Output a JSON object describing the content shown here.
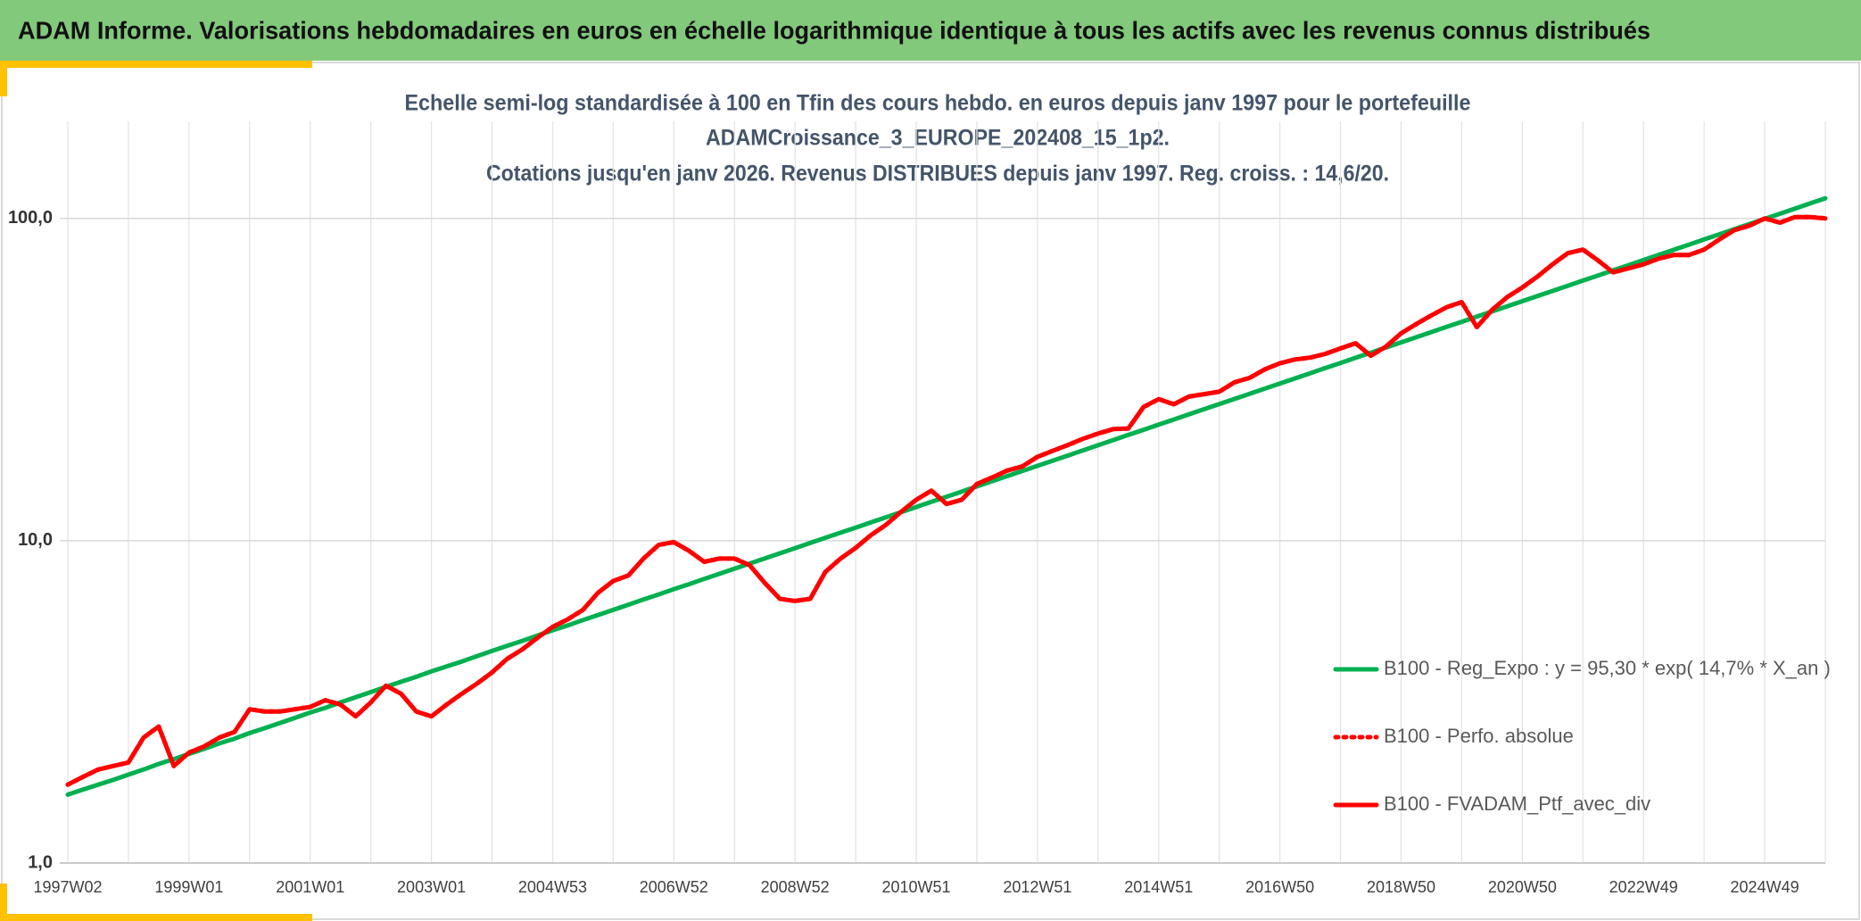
{
  "header": {
    "title": "ADAM Informe. Valorisations hebdomadaires en euros en échelle logarithmique identique à tous les actifs avec les revenus connus distribués"
  },
  "chart_data": {
    "type": "line",
    "title": [
      "Echelle semi-log standardisée à 100 en Tfin des cours hebdo. en euros depuis janv 1997 pour le portefeuille",
      "ADAMCroissance_3_EUROPE_202408_15_1p2.",
      "Cotations jusqu'en janv 2026. Revenus DISTRIBUES depuis janv 1997. Reg. croiss. : 14,6/20."
    ],
    "x": [
      "1997W02",
      null,
      null,
      null,
      null,
      null,
      null,
      null,
      "1999W01",
      null,
      null,
      null,
      null,
      null,
      null,
      null,
      "2001W01",
      null,
      null,
      null,
      null,
      null,
      null,
      null,
      "2003W01",
      null,
      null,
      null,
      null,
      null,
      null,
      null,
      "2004W53",
      null,
      null,
      null,
      null,
      null,
      null,
      null,
      "2006W52",
      null,
      null,
      null,
      null,
      null,
      null,
      null,
      "2008W52",
      null,
      null,
      null,
      null,
      null,
      null,
      null,
      "2010W51",
      null,
      null,
      null,
      null,
      null,
      null,
      null,
      "2012W51",
      null,
      null,
      null,
      null,
      null,
      null,
      null,
      "2014W51",
      null,
      null,
      null,
      null,
      null,
      null,
      null,
      "2016W50",
      null,
      null,
      null,
      null,
      null,
      null,
      null,
      "2018W50",
      null,
      null,
      null,
      null,
      null,
      null,
      null,
      "2020W50",
      null,
      null,
      null,
      null,
      null,
      null,
      null,
      "2022W49",
      null,
      null,
      null,
      null,
      null,
      null,
      null,
      "2024W49",
      null,
      null,
      null,
      null
    ],
    "series": [
      {
        "name": "B100 - Reg_Expo : y = 95,30 * exp( 14,7% *  X_an )",
        "color": "#00b050",
        "style": "solid",
        "values": [
          1.63,
          1.69,
          1.75,
          1.81,
          1.88,
          1.95,
          2.03,
          2.1,
          2.18,
          2.26,
          2.35,
          2.43,
          2.53,
          2.62,
          2.72,
          2.82,
          2.93,
          3.03,
          3.15,
          3.27,
          3.39,
          3.52,
          3.65,
          3.78,
          3.93,
          4.07,
          4.22,
          4.38,
          4.55,
          4.72,
          4.89,
          5.08,
          5.27,
          5.46,
          5.67,
          5.88,
          6.1,
          6.33,
          6.57,
          6.81,
          7.07,
          7.33,
          7.61,
          7.89,
          8.19,
          8.49,
          8.81,
          9.14,
          9.48,
          9.84,
          10.21,
          10.59,
          10.98,
          11.39,
          11.82,
          12.26,
          12.72,
          13.2,
          13.69,
          14.2,
          14.74,
          15.29,
          15.86,
          16.46,
          17.07,
          17.71,
          18.37,
          19.06,
          19.78,
          20.52,
          21.29,
          22.08,
          22.91,
          23.77,
          24.66,
          25.58,
          26.54,
          27.53,
          28.56,
          29.63,
          30.74,
          31.89,
          33.08,
          34.32,
          35.61,
          36.94,
          38.32,
          39.76,
          41.25,
          42.79,
          44.39,
          46.06,
          47.78,
          49.57,
          51.42,
          53.35,
          55.35,
          57.42,
          59.57,
          61.8,
          64.11,
          66.51,
          69.0,
          71.58,
          74.27,
          77.05,
          79.93,
          82.92,
          86.03,
          89.25,
          92.59,
          96.05,
          99.65,
          103.4,
          107.2,
          111.3,
          115.4
        ]
      },
      {
        "name": "B100 - Perfo. absolue",
        "color": "#ff0000",
        "style": "dotted",
        "values": [
          1.75,
          1.85,
          1.95,
          2.0,
          2.05,
          2.45,
          2.65,
          2.0,
          2.2,
          2.3,
          2.45,
          2.55,
          3.0,
          2.95,
          2.95,
          3.0,
          3.05,
          3.2,
          3.1,
          2.85,
          3.15,
          3.55,
          3.35,
          2.95,
          2.85,
          3.1,
          3.35,
          3.6,
          3.9,
          4.3,
          4.6,
          5.0,
          5.4,
          5.7,
          6.1,
          6.9,
          7.5,
          7.8,
          8.8,
          9.7,
          9.9,
          9.3,
          8.6,
          8.8,
          8.8,
          8.4,
          7.4,
          6.6,
          6.5,
          6.6,
          8.0,
          8.8,
          9.5,
          10.4,
          11.2,
          12.3,
          13.4,
          14.3,
          13.0,
          13.4,
          15.0,
          15.7,
          16.5,
          17.0,
          18.2,
          19.0,
          19.8,
          20.7,
          21.5,
          22.2,
          22.3,
          26.0,
          27.5,
          26.5,
          28.0,
          28.5,
          29.0,
          31.0,
          32.0,
          34.0,
          35.5,
          36.5,
          37.0,
          38.0,
          39.5,
          41.0,
          37.5,
          40.0,
          44.0,
          47.0,
          50.0,
          53.0,
          55.0,
          46.0,
          52.0,
          57.0,
          61.0,
          66.0,
          72.0,
          78.0,
          80.0,
          74.0,
          68.0,
          70.0,
          72.0,
          75.0,
          77.0,
          77.0,
          80.0,
          86.0,
          92.0,
          95.0,
          100.0,
          97.0,
          101.0,
          101.0,
          100.0
        ]
      },
      {
        "name": "B100 - FVADAM_Ptf_avec_div",
        "color": "#ff0000",
        "style": "solid",
        "values": [
          1.75,
          1.85,
          1.95,
          2.0,
          2.05,
          2.45,
          2.65,
          2.0,
          2.2,
          2.3,
          2.45,
          2.55,
          3.0,
          2.95,
          2.95,
          3.0,
          3.05,
          3.2,
          3.1,
          2.85,
          3.15,
          3.55,
          3.35,
          2.95,
          2.85,
          3.1,
          3.35,
          3.6,
          3.9,
          4.3,
          4.6,
          5.0,
          5.4,
          5.7,
          6.1,
          6.9,
          7.5,
          7.8,
          8.8,
          9.7,
          9.9,
          9.3,
          8.6,
          8.8,
          8.8,
          8.4,
          7.4,
          6.6,
          6.5,
          6.6,
          8.0,
          8.8,
          9.5,
          10.4,
          11.2,
          12.3,
          13.4,
          14.3,
          13.0,
          13.4,
          15.0,
          15.7,
          16.5,
          17.0,
          18.2,
          19.0,
          19.8,
          20.7,
          21.5,
          22.2,
          22.3,
          26.0,
          27.5,
          26.5,
          28.0,
          28.5,
          29.0,
          31.0,
          32.0,
          34.0,
          35.5,
          36.5,
          37.0,
          38.0,
          39.5,
          41.0,
          37.5,
          40.0,
          44.0,
          47.0,
          50.0,
          53.0,
          55.0,
          46.0,
          52.0,
          57.0,
          61.0,
          66.0,
          72.0,
          78.0,
          80.0,
          74.0,
          68.0,
          70.0,
          72.0,
          75.0,
          77.0,
          77.0,
          80.0,
          86.0,
          92.0,
          95.0,
          100.0,
          97.0,
          101.0,
          101.0,
          100.0
        ]
      }
    ],
    "ylim": [
      1,
      200
    ],
    "log_y": true,
    "yticks": [
      {
        "value": 1,
        "label": "1,0"
      },
      {
        "value": 10,
        "label": "10,0"
      },
      {
        "value": 100,
        "label": "100,0"
      }
    ],
    "grid": true,
    "legend": "lower right"
  }
}
